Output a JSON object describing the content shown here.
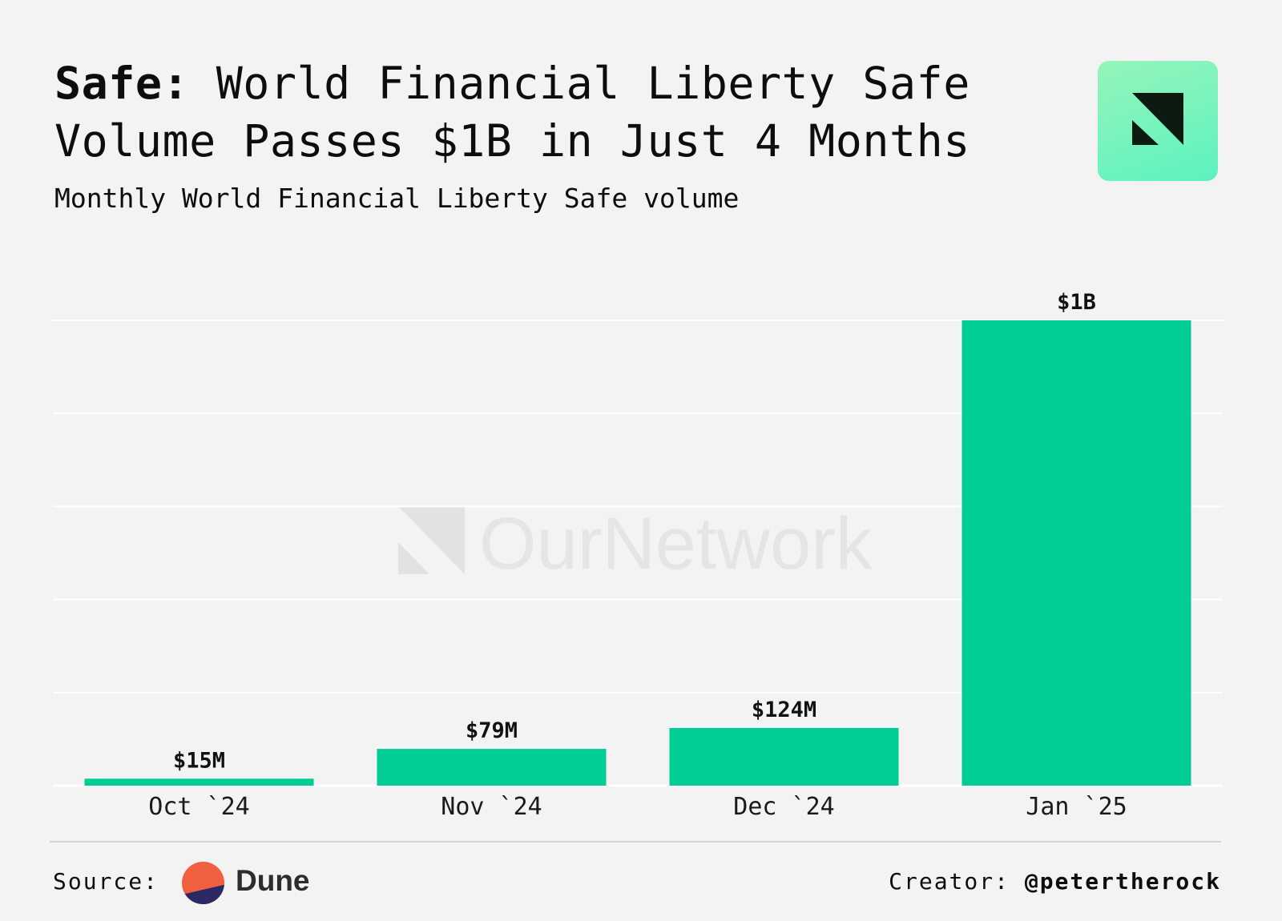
{
  "header": {
    "title_lead": "Safe:",
    "title_rest": " World Financial Liberty Safe Volume Passes $1B in Just 4 Months",
    "subtitle": "Monthly World Financial Liberty Safe volume"
  },
  "watermark": {
    "text": "OurNetwork"
  },
  "footer": {
    "source_label": "Source:",
    "source_name": "Dune",
    "creator_label": "Creator:",
    "creator_handle": "@petertherock"
  },
  "colors": {
    "background": "#f3f3f3",
    "bar": "#00cc96",
    "brand_gradient_top": "#95f5ba",
    "brand_gradient_bottom": "#5cf2bf",
    "dune_orange": "#f06040",
    "dune_navy": "#2b2864"
  },
  "icons": {
    "brand": "ournetwork-logo-icon",
    "source": "dune-logo-icon"
  },
  "chart_data": {
    "type": "bar",
    "title": "Safe: World Financial Liberty Safe Volume Passes $1B in Just 4 Months",
    "subtitle": "Monthly World Financial Liberty Safe volume",
    "categories": [
      "Oct `24",
      "Nov `24",
      "Dec `24",
      "Jan `25"
    ],
    "values": [
      15000000,
      79000000,
      124000000,
      1000000000
    ],
    "data_labels": [
      "$15M",
      "$79M",
      "$124M",
      "$1B"
    ],
    "ylim": [
      0,
      1000000000
    ],
    "gridlines": true,
    "legend": "none"
  }
}
